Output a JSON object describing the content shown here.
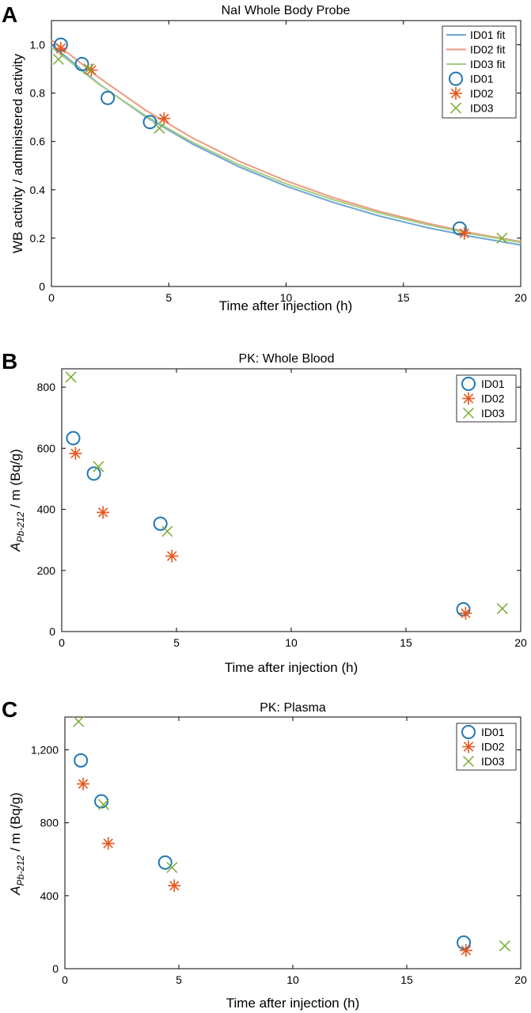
{
  "colors": {
    "ID01": "#1f77b4",
    "ID02": "#e8561c",
    "ID03": "#77ac30",
    "ID01_fit": "#6ea6d4",
    "ID02_fit": "#ee9a7e",
    "ID03_fit": "#a6cc82"
  },
  "chart_data": [
    {
      "panel": "A",
      "type": "scatter",
      "title": "NaI Whole Body Probe",
      "xlabel": "Time after injection (h)",
      "ylabel": "WB activity / administered activity",
      "xlim": [
        0,
        20
      ],
      "ylim": [
        0,
        1.1
      ],
      "xticks": [
        0,
        5,
        10,
        15,
        20
      ],
      "xtick_labels": [
        "0",
        "5",
        "10",
        "15",
        "20"
      ],
      "yticks": [
        0,
        0.2,
        0.4,
        0.6,
        0.8,
        1.0
      ],
      "ytick_labels": [
        "0",
        "0.2",
        "0.4",
        "0.6",
        "0.8",
        "1.0"
      ],
      "legend_position": "top-right",
      "legend": [
        "ID01 fit",
        "ID02 fit",
        "ID03 fit",
        "ID01",
        "ID02",
        "ID03"
      ],
      "fits": [
        {
          "name": "ID01 fit",
          "color_key": "ID01_fit",
          "x": [
            0,
            2,
            4,
            6,
            8,
            10,
            12,
            14,
            16,
            18,
            20
          ],
          "y": [
            1.0,
            0.84,
            0.703,
            0.59,
            0.495,
            0.415,
            0.348,
            0.291,
            0.244,
            0.205,
            0.172
          ]
        },
        {
          "name": "ID02 fit",
          "color_key": "ID02_fit",
          "x": [
            0,
            2,
            4,
            6,
            8,
            10,
            12,
            14,
            16,
            18,
            20
          ],
          "y": [
            1.02,
            0.866,
            0.73,
            0.615,
            0.518,
            0.437,
            0.368,
            0.31,
            0.262,
            0.22,
            0.186
          ]
        },
        {
          "name": "ID03 fit",
          "color_key": "ID03_fit",
          "x": [
            0,
            2,
            4,
            6,
            8,
            10,
            12,
            14,
            16,
            18,
            20
          ],
          "y": [
            0.99,
            0.838,
            0.707,
            0.597,
            0.504,
            0.425,
            0.359,
            0.303,
            0.256,
            0.216,
            0.182
          ]
        }
      ],
      "series": [
        {
          "name": "ID01",
          "marker": "circle",
          "color_key": "ID01",
          "x": [
            0.4,
            1.3,
            2.4,
            4.2,
            17.4
          ],
          "y": [
            1.0,
            0.92,
            0.78,
            0.68,
            0.24
          ]
        },
        {
          "name": "ID02",
          "marker": "asterisk",
          "color_key": "ID02",
          "x": [
            0.4,
            1.7,
            4.8,
            17.6
          ],
          "y": [
            0.985,
            0.895,
            0.695,
            0.22
          ]
        },
        {
          "name": "ID03",
          "marker": "x",
          "color_key": "ID03",
          "x": [
            0.3,
            1.6,
            4.6,
            19.2
          ],
          "y": [
            0.94,
            0.9,
            0.655,
            0.2
          ]
        }
      ]
    },
    {
      "panel": "B",
      "type": "scatter",
      "title": "PK: Whole Blood",
      "xlabel": "Time after injection (h)",
      "ylabel_main": "A",
      "ylabel_sub": "Pb-212",
      "ylabel_tail": " / m  (Bq/g)",
      "xlim": [
        0,
        20
      ],
      "ylim": [
        0,
        860
      ],
      "xticks": [
        0,
        5,
        10,
        15,
        20
      ],
      "xtick_labels": [
        "0",
        "5",
        "10",
        "15",
        "20"
      ],
      "yticks": [
        0,
        200,
        400,
        600,
        800
      ],
      "ytick_labels": [
        "0",
        "200",
        "400",
        "600",
        "800"
      ],
      "legend_position": "top-right",
      "legend": [
        "ID01",
        "ID02",
        "ID03"
      ],
      "series": [
        {
          "name": "ID01",
          "marker": "circle",
          "color_key": "ID01",
          "x": [
            0.5,
            1.4,
            4.3,
            17.5
          ],
          "y": [
            633,
            517,
            353,
            73
          ]
        },
        {
          "name": "ID02",
          "marker": "asterisk",
          "color_key": "ID02",
          "x": [
            0.6,
            1.8,
            4.8,
            17.6
          ],
          "y": [
            583,
            390,
            247,
            60
          ]
        },
        {
          "name": "ID03",
          "marker": "x",
          "color_key": "ID03",
          "x": [
            0.4,
            1.6,
            4.6,
            19.2
          ],
          "y": [
            833,
            540,
            328,
            75
          ]
        }
      ]
    },
    {
      "panel": "C",
      "type": "scatter",
      "title": "PK: Plasma",
      "xlabel": "Time after injection (h)",
      "ylabel_main": "A",
      "ylabel_sub": "Pb-212",
      "ylabel_tail": " / m  (Bq/g)",
      "xlim": [
        0,
        20
      ],
      "ylim": [
        0,
        1380
      ],
      "xticks": [
        0,
        5,
        10,
        15,
        20
      ],
      "xtick_labels": [
        "0",
        "5",
        "10",
        "15",
        "20"
      ],
      "yticks": [
        0,
        400,
        800,
        1200
      ],
      "ytick_labels": [
        "0",
        "400",
        "800",
        "1,200"
      ],
      "legend_position": "top-right",
      "legend": [
        "ID01",
        "ID02",
        "ID03"
      ],
      "series": [
        {
          "name": "ID01",
          "marker": "circle",
          "color_key": "ID01",
          "x": [
            0.7,
            1.6,
            4.4,
            17.5
          ],
          "y": [
            1142,
            918,
            582,
            143
          ]
        },
        {
          "name": "ID02",
          "marker": "asterisk",
          "color_key": "ID02",
          "x": [
            0.8,
            1.9,
            4.8,
            17.6
          ],
          "y": [
            1013,
            687,
            455,
            100
          ]
        },
        {
          "name": "ID03",
          "marker": "x",
          "color_key": "ID03",
          "x": [
            0.6,
            1.7,
            4.7,
            19.3
          ],
          "y": [
            1355,
            900,
            555,
            125
          ]
        }
      ]
    }
  ]
}
